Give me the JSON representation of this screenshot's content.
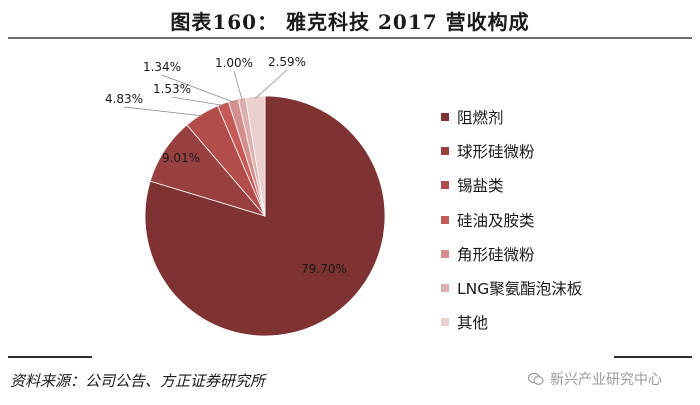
{
  "header": {
    "title": "图表160：    雅克科技 2017 营收构成"
  },
  "footer": {
    "source": "资料来源：公司公告、方正证券研究所",
    "watermark": "新兴产业研究中心",
    "watermark_icon": "wechat-icon"
  },
  "chart_data": {
    "type": "pie",
    "start_angle_deg": 0,
    "direction": "clockwise",
    "slices": [
      {
        "label": "阻燃剂",
        "value": 79.7,
        "value_label": "79.70%",
        "color": "#7e3231"
      },
      {
        "label": "球形硅微粉",
        "value": 9.01,
        "value_label": "9.01%",
        "color": "#98403f"
      },
      {
        "label": "锡盐类",
        "value": 4.83,
        "value_label": "4.83%",
        "color": "#b34d4b"
      },
      {
        "label": "硅油及胺类",
        "value": 1.53,
        "value_label": "1.53%",
        "color": "#c55a57"
      },
      {
        "label": "角形硅微粉",
        "value": 1.34,
        "value_label": "1.34%",
        "color": "#d48f8d"
      },
      {
        "label": "LNG聚氨酯泡沫板",
        "value": 1.0,
        "value_label": "1.00%",
        "color": "#ddb0af"
      },
      {
        "label": "其他",
        "value": 2.59,
        "value_label": "2.59%",
        "color": "#ebcfcf"
      }
    ],
    "legend_position": "right"
  }
}
